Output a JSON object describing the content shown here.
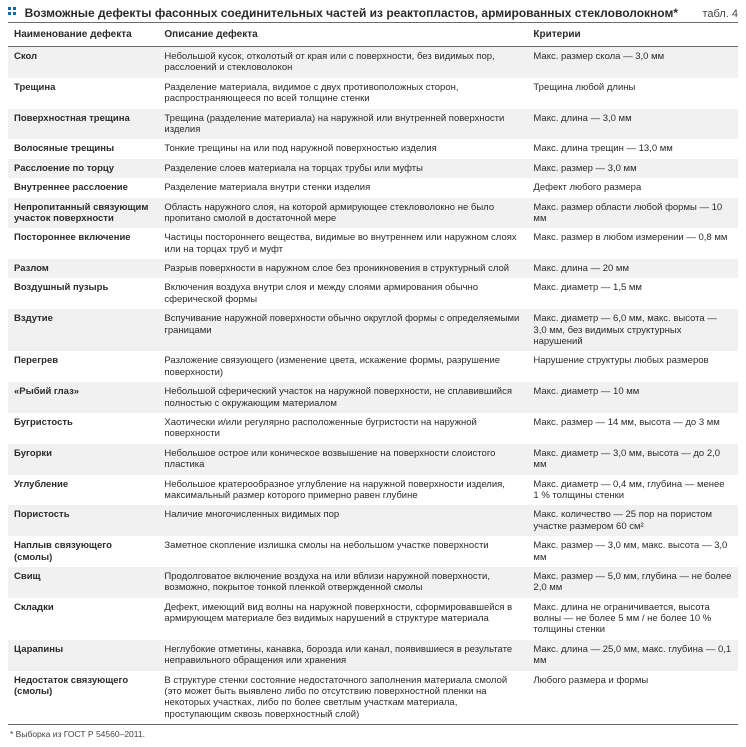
{
  "header": {
    "title": "Возможные дефекты фасонных соединительных частей из реактопластов, армированных стекловолокном*",
    "table_label": "табл. 4"
  },
  "columns": [
    "Наименование дефекта",
    "Описание дефекта",
    "Критерии"
  ],
  "rows": [
    {
      "name": "Скол",
      "desc": "Небольшой кусок, отколотый от края или с поверхности, без видимых пор, расслоений и стекловолокон",
      "crit": "Макс. размер скола — 3,0 мм"
    },
    {
      "name": "Трещина",
      "desc": "Разделение материала, видимое с двух противоположных сторон, распространяющееся по всей толщине стенки",
      "crit": "Трещина любой длины"
    },
    {
      "name": "Поверхностная трещина",
      "desc": "Трещина (разделение материала) на наружной или внутренней поверхности изделия",
      "crit": "Макс. длина — 3,0 мм"
    },
    {
      "name": "Волосяные трещины",
      "desc": "Тонкие трещины на или под наружной поверхностью изделия",
      "crit": "Макс. длина трещин — 13,0 мм"
    },
    {
      "name": "Расслоение по торцу",
      "desc": "Разделение слоев материала на торцах трубы или муфты",
      "crit": "Макс. размер — 3,0 мм"
    },
    {
      "name": "Внутреннее расслоение",
      "desc": "Разделение материала внутри стенки изделия",
      "crit": "Дефект любого размера"
    },
    {
      "name": "Непропитанный связующим участок поверхности",
      "desc": "Область наружного слоя, на которой армирующее стекловолокно не было пропитано смолой в достаточной мере",
      "crit": "Макс. размер области любой формы — 10 мм"
    },
    {
      "name": "Постороннее включение",
      "desc": "Частицы постороннего вещества, видимые во внутреннем или наружном слоях или на торцах труб и муфт",
      "crit": "Макс. размер в любом измерении — 0,8 мм"
    },
    {
      "name": "Разлом",
      "desc": "Разрыв поверхности в наружном слое без проникновения в структурный слой",
      "crit": "Макс. длина — 20 мм"
    },
    {
      "name": "Воздушный пузырь",
      "desc": "Включения воздуха внутри слоя и между слоями армирования обычно сферической формы",
      "crit": "Макс. диаметр — 1,5 мм"
    },
    {
      "name": "Вздутие",
      "desc": "Вспучивание наружной поверхности обычно округлой формы с определяемыми границами",
      "crit": "Макс. диаметр — 6,0 мм, макс. высота — 3,0 мм, без видимых структурных нарушений"
    },
    {
      "name": "Перегрев",
      "desc": "Разложение связующего (изменение цвета, искажение формы, разрушение поверхности)",
      "crit": "Нарушение структуры любых размеров"
    },
    {
      "name": "«Рыбий глаз»",
      "desc": "Небольшой сферический участок на наружной поверхности, не сплавившийся полностью с окружающим материалом",
      "crit": "Макс. диаметр — 10 мм"
    },
    {
      "name": "Бугристость",
      "desc": "Хаотически и/или регулярно расположенные бугристости на наружной поверхности",
      "crit": "Макс. размер — 14 мм, высота — до 3 мм"
    },
    {
      "name": "Бугорки",
      "desc": "Небольшое острое или коническое возвышение на поверхности слоистого пластика",
      "crit": "Макс. диаметр — 3,0 мм, высота — до 2,0 мм"
    },
    {
      "name": "Углубление",
      "desc": "Небольшое кратерообразное углубление на наружной поверхности изделия, максимальный размер которого примерно равен глубине",
      "crit": "Макс. диаметр — 0,4 мм, глубина — менее 1 % толщины стенки"
    },
    {
      "name": "Пористость",
      "desc": "Наличие многочисленных видимых пор",
      "crit": "Макс. количество — 25 пор на пористом участке размером 60 см²"
    },
    {
      "name": "Наплыв связующего (смолы)",
      "desc": "Заметное скопление излишка смолы на небольшом участке поверхности",
      "crit": "Макс. размер — 3,0 мм, макс. высота — 3,0 мм"
    },
    {
      "name": "Свищ",
      "desc": "Продолговатое включение воздуха на или вблизи наружной поверхности, возможно, покрытое тонкой пленкой отвержденной смолы",
      "crit": "Макс. размер — 5,0 мм, глубина — не более 2,0 мм"
    },
    {
      "name": "Складки",
      "desc": "Дефект, имеющий вид волны на наружной поверхности, сформировавшейся в армирующем материале без видимых нарушений в структуре материала",
      "crit": "Макс. длина не ограничивается, высота волны — не более 5 мм / не более 10 % толщины стенки"
    },
    {
      "name": "Царапины",
      "desc": "Неглубокие отметины, канавка, борозда или канал, появившиеся в результате неправильного обращения или хранения",
      "crit": "Макс. длина — 25,0 мм, макс. глубина — 0,1 мм"
    },
    {
      "name": "Недостаток связующего (смолы)",
      "desc": "В структуре стенки состояние недостаточного заполнения материала смолой (это может быть выявлено либо по отсутствию поверхностной пленки на некоторых участках, либо по более светлым участкам материала, проступающим сквозь поверхностный слой)",
      "crit": "Любого размера и формы"
    }
  ],
  "footnote": "* Выборка из ГОСТ Р 54560–2011."
}
